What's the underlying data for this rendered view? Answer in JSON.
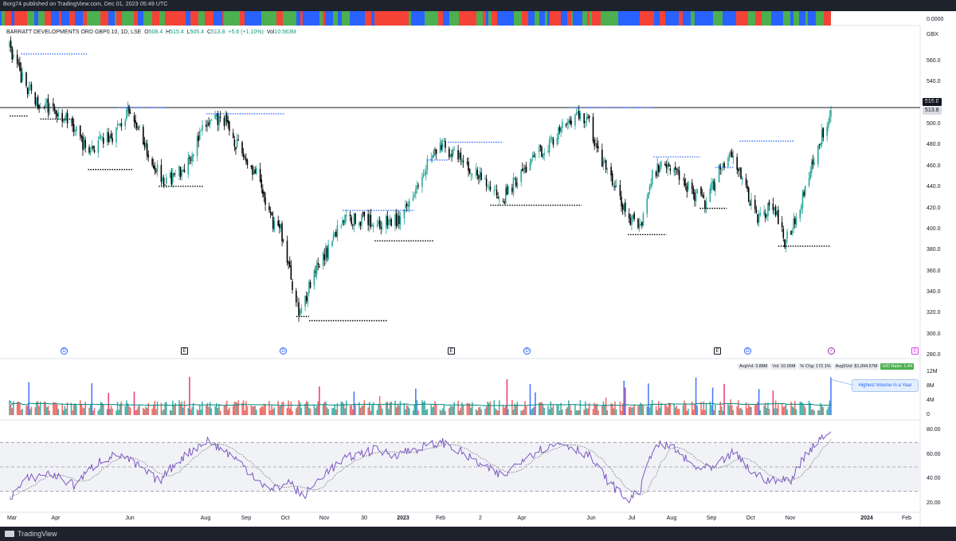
{
  "header": {
    "published": "Borg74 published on TradingView.com, Dec 01, 2023 05:49 UTC"
  },
  "symbol": {
    "name": "BARRATT DEVELOPMENTS ORD GBP0.10, 1D, LSE",
    "open_label": "O",
    "open": "508.4",
    "high_label": "H",
    "high": "515.4",
    "low_label": "L",
    "low": "505.4",
    "close_label": "C",
    "close": "513.8",
    "change": "+5.6 (+1.10%)",
    "vol_label": "Vol",
    "volume": "10.563M",
    "currency": "GBX"
  },
  "strip": {
    "right_label": "0.0000"
  },
  "price_tags": {
    "level": "516.0",
    "last": "513.8"
  },
  "volume_panel": {
    "avg_vol": "AvgVol: 3.88M",
    "vol": "Vol: 10.56M",
    "chg": "% Chg: 172.1%",
    "avg_dollar_vol": "AvgSVol: $1,994.57M",
    "ud_ratio": "U/D Ratio: 1.44",
    "callout": "Highest Volume in a Year"
  },
  "events": [
    {
      "type": "D",
      "label": "D"
    },
    {
      "type": "E",
      "label": "E"
    },
    {
      "type": "D",
      "label": "D"
    },
    {
      "type": "E",
      "label": "E"
    },
    {
      "type": "D",
      "label": "D"
    },
    {
      "type": "E",
      "label": "E"
    },
    {
      "type": "D",
      "label": "D"
    },
    {
      "type": "S",
      "label": "⚡"
    },
    {
      "type": "Ep",
      "label": "E"
    }
  ],
  "brand": "TradingView",
  "colors": {
    "up": "#26a69a",
    "down": "#ef5350",
    "strip_green": "#4caf50",
    "strip_red": "#f44336",
    "strip_blue": "#2962ff",
    "rsi": "#7e57c2",
    "resistance": "#2962ff",
    "support": "#000000"
  },
  "chart_data": [
    {
      "type": "candlestick",
      "title": "BARRATT DEVELOPMENTS ORD GBP0.10, 1D, LSE",
      "ylabel": "GBX",
      "ylim": [
        280,
        580
      ],
      "yticks": [
        280,
        300,
        320,
        340,
        360,
        380,
        400,
        420,
        440,
        460,
        480,
        500,
        520,
        540,
        560
      ],
      "xticks": [
        "Mar",
        "Apr",
        "Jun",
        "Aug",
        "Sep",
        "Oct",
        "Nov",
        "30",
        "2023",
        "Feb",
        "2",
        "Apr",
        "Jun",
        "Jul",
        "Aug",
        "Sep",
        "Oct",
        "Nov",
        "2024",
        "Feb"
      ],
      "close_path": [
        [
          "2022-03-01",
          575
        ],
        [
          "2022-03-10",
          545
        ],
        [
          "2022-03-20",
          525
        ],
        [
          "2022-04-01",
          515
        ],
        [
          "2022-04-15",
          505
        ],
        [
          "2022-05-01",
          475
        ],
        [
          "2022-05-20",
          490
        ],
        [
          "2022-06-01",
          510
        ],
        [
          "2022-06-10",
          495
        ],
        [
          "2022-06-20",
          465
        ],
        [
          "2022-07-01",
          445
        ],
        [
          "2022-07-15",
          460
        ],
        [
          "2022-08-01",
          500
        ],
        [
          "2022-08-15",
          505
        ],
        [
          "2022-08-25",
          480
        ],
        [
          "2022-09-10",
          450
        ],
        [
          "2022-09-20",
          410
        ],
        [
          "2022-09-28",
          400
        ],
        [
          "2022-10-05",
          360
        ],
        [
          "2022-10-12",
          320
        ],
        [
          "2022-10-20",
          345
        ],
        [
          "2022-11-01",
          375
        ],
        [
          "2022-11-15",
          410
        ],
        [
          "2022-12-01",
          410
        ],
        [
          "2022-12-15",
          405
        ],
        [
          "2023-01-01",
          410
        ],
        [
          "2023-01-10",
          440
        ],
        [
          "2023-01-20",
          465
        ],
        [
          "2023-02-01",
          480
        ],
        [
          "2023-02-15",
          465
        ],
        [
          "2023-03-01",
          450
        ],
        [
          "2023-03-20",
          430
        ],
        [
          "2023-04-01",
          450
        ],
        [
          "2023-04-15",
          470
        ],
        [
          "2023-05-01",
          490
        ],
        [
          "2023-05-15",
          510
        ],
        [
          "2023-05-25",
          505
        ],
        [
          "2023-06-01",
          475
        ],
        [
          "2023-06-15",
          440
        ],
        [
          "2023-06-25",
          410
        ],
        [
          "2023-07-05",
          405
        ],
        [
          "2023-07-15",
          455
        ],
        [
          "2023-07-25",
          465
        ],
        [
          "2023-08-05",
          450
        ],
        [
          "2023-08-15",
          435
        ],
        [
          "2023-08-25",
          425
        ],
        [
          "2023-09-05",
          460
        ],
        [
          "2023-09-15",
          475
        ],
        [
          "2023-09-25",
          435
        ],
        [
          "2023-10-05",
          410
        ],
        [
          "2023-10-15",
          425
        ],
        [
          "2023-10-25",
          390
        ],
        [
          "2023-11-01",
          405
        ],
        [
          "2023-11-10",
          440
        ],
        [
          "2023-11-20",
          480
        ],
        [
          "2023-11-30",
          514
        ]
      ],
      "horizontal_level": 516.0,
      "last_price": 513.8,
      "resistance_levels": [
        {
          "from": "2022-03-10",
          "to": "2022-05-01",
          "price": 567
        },
        {
          "from": "2022-05-25",
          "to": "2022-07-01",
          "price": 516
        },
        {
          "from": "2022-08-01",
          "to": "2022-10-01",
          "price": 510
        },
        {
          "from": "2022-11-15",
          "to": "2023-01-10",
          "price": 418
        },
        {
          "from": "2023-01-20",
          "to": "2023-02-05",
          "price": 466
        },
        {
          "from": "2023-02-05",
          "to": "2023-03-20",
          "price": 483
        },
        {
          "from": "2023-05-10",
          "to": "2023-07-15",
          "price": 516
        },
        {
          "from": "2023-07-15",
          "to": "2023-08-20",
          "price": 469
        },
        {
          "from": "2023-09-01",
          "to": "2023-09-15",
          "price": 459
        },
        {
          "from": "2023-09-20",
          "to": "2023-11-01",
          "price": 484
        }
      ],
      "support_levels": [
        {
          "from": "2022-03-01",
          "to": "2022-03-15",
          "price": 508
        },
        {
          "from": "2022-03-25",
          "to": "2022-04-20",
          "price": 505
        },
        {
          "from": "2022-05-01",
          "to": "2022-06-05",
          "price": 457
        },
        {
          "from": "2022-06-25",
          "to": "2022-07-30",
          "price": 441
        },
        {
          "from": "2022-10-10",
          "to": "2022-10-20",
          "price": 317
        },
        {
          "from": "2022-10-20",
          "to": "2022-12-20",
          "price": 313
        },
        {
          "from": "2022-12-10",
          "to": "2023-01-25",
          "price": 389
        },
        {
          "from": "2023-03-10",
          "to": "2023-05-20",
          "price": 423
        },
        {
          "from": "2023-06-25",
          "to": "2023-07-25",
          "price": 395
        },
        {
          "from": "2023-08-20",
          "to": "2023-09-10",
          "price": 420
        },
        {
          "from": "2023-10-20",
          "to": "2023-11-30",
          "price": 384
        }
      ]
    },
    {
      "type": "bar",
      "title": "Volume",
      "ylim": [
        0,
        14
      ],
      "yticks": [
        "0",
        "4M",
        "8M",
        "12M"
      ],
      "latest_volume_millions": 10.56,
      "average_volume_millions": 3.88
    },
    {
      "type": "line",
      "title": "RSI",
      "ylim": [
        15,
        85
      ],
      "yticks": [
        "20.00",
        "40.00",
        "60.00",
        "80.00"
      ],
      "bands": [
        30,
        50,
        70
      ],
      "rsi_path": [
        [
          "2022-03-01",
          25
        ],
        [
          "2022-03-15",
          40
        ],
        [
          "2022-04-01",
          45
        ],
        [
          "2022-04-20",
          35
        ],
        [
          "2022-05-10",
          55
        ],
        [
          "2022-05-25",
          60
        ],
        [
          "2022-06-10",
          50
        ],
        [
          "2022-06-25",
          38
        ],
        [
          "2022-07-10",
          55
        ],
        [
          "2022-08-01",
          72
        ],
        [
          "2022-08-20",
          60
        ],
        [
          "2022-09-05",
          45
        ],
        [
          "2022-09-20",
          30
        ],
        [
          "2022-10-05",
          38
        ],
        [
          "2022-10-15",
          25
        ],
        [
          "2022-11-01",
          45
        ],
        [
          "2022-11-20",
          58
        ],
        [
          "2022-12-10",
          64
        ],
        [
          "2022-12-25",
          60
        ],
        [
          "2023-01-15",
          66
        ],
        [
          "2023-02-01",
          70
        ],
        [
          "2023-02-15",
          62
        ],
        [
          "2023-03-05",
          50
        ],
        [
          "2023-03-20",
          42
        ],
        [
          "2023-04-05",
          58
        ],
        [
          "2023-04-20",
          65
        ],
        [
          "2023-05-05",
          70
        ],
        [
          "2023-05-25",
          60
        ],
        [
          "2023-06-10",
          38
        ],
        [
          "2023-06-25",
          22
        ],
        [
          "2023-07-05",
          32
        ],
        [
          "2023-07-15",
          68
        ],
        [
          "2023-07-30",
          66
        ],
        [
          "2023-08-15",
          50
        ],
        [
          "2023-08-30",
          48
        ],
        [
          "2023-09-15",
          62
        ],
        [
          "2023-09-30",
          45
        ],
        [
          "2023-10-15",
          38
        ],
        [
          "2023-10-30",
          40
        ],
        [
          "2023-11-10",
          60
        ],
        [
          "2023-11-20",
          72
        ],
        [
          "2023-11-30",
          80
        ]
      ]
    }
  ]
}
